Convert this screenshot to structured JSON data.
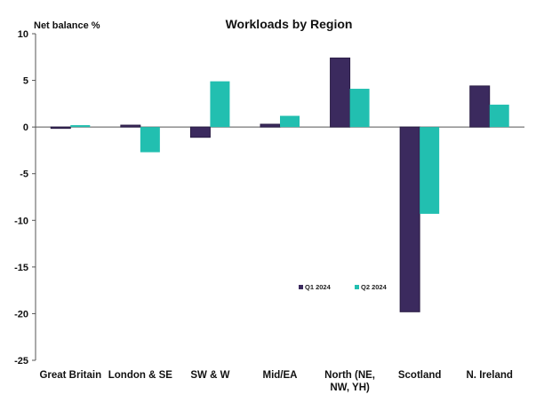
{
  "chart_data": {
    "type": "bar",
    "title": "Workloads by Region",
    "ylabel": "Net balance %",
    "xlabel": "",
    "ylim": [
      -25,
      10
    ],
    "yticks": [
      10,
      5,
      0,
      -5,
      -10,
      -15,
      -20,
      -25
    ],
    "categories": [
      [
        "Great Britain"
      ],
      [
        "London & SE"
      ],
      [
        "SW & W"
      ],
      [
        "Mid/EA"
      ],
      [
        "North (NE,",
        "NW, YH)"
      ],
      [
        "Scotland"
      ],
      [
        "N. Ireland"
      ]
    ],
    "series": [
      {
        "name": "Q1 2024",
        "color": "#3b2a5e",
        "values": [
          -0.1,
          0.2,
          -1.1,
          0.3,
          7.4,
          -19.8,
          4.4
        ]
      },
      {
        "name": "Q2 2024",
        "color": "#22bfb0",
        "values": [
          0.2,
          -2.7,
          4.9,
          1.2,
          4.1,
          -9.3,
          2.4
        ]
      }
    ],
    "grid": false,
    "legend": "lower-right inside plot"
  }
}
